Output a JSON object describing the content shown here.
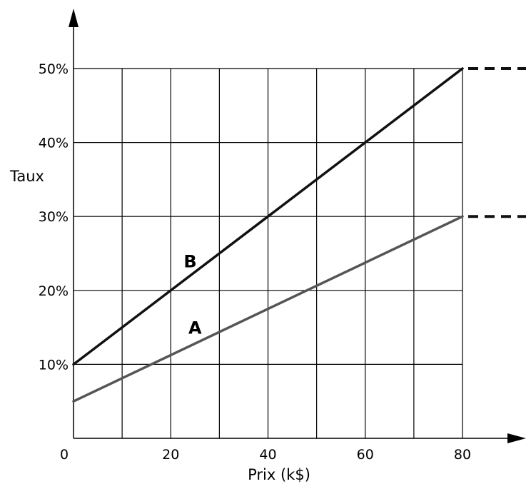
{
  "chart_data": {
    "type": "line",
    "xlabel": "Prix (k$)",
    "ylabel": "Taux",
    "xlim": [
      0,
      80
    ],
    "ylim": [
      0,
      50
    ],
    "x_ticks": [
      0,
      20,
      40,
      60,
      80
    ],
    "x_tick_labels": [
      "0",
      "20",
      "40",
      "60",
      "80"
    ],
    "x_grid": [
      0,
      10,
      20,
      30,
      40,
      50,
      60,
      70,
      80
    ],
    "y_ticks": [
      10,
      20,
      30,
      40,
      50
    ],
    "y_tick_labels": [
      "10%",
      "20%",
      "30%",
      "40%",
      "50%"
    ],
    "grid": true,
    "series": [
      {
        "name": "B",
        "x": [
          0,
          80
        ],
        "y": [
          10,
          50
        ],
        "color": "#111111",
        "continuation_y": 50
      },
      {
        "name": "A",
        "x": [
          0,
          80
        ],
        "y": [
          5,
          30
        ],
        "color": "#555555",
        "continuation_y": 30
      }
    ]
  }
}
